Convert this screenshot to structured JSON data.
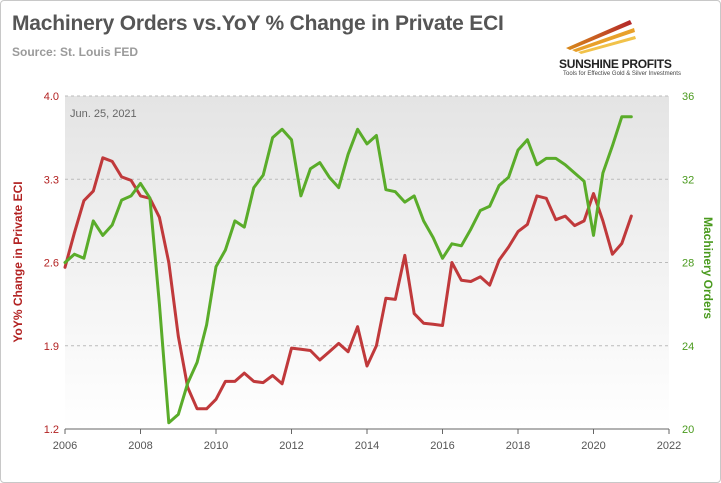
{
  "header": {
    "title": "Machinery Orders vs.YoY % Change in Private ECI",
    "source": "Source: St. Louis FED"
  },
  "logo": {
    "brand": "SUNSHINE PROFITS",
    "tagline": "Tools for Effective Gold & Silver Investments"
  },
  "colors": {
    "eci": "#c0393b",
    "orders": "#5aac2a",
    "left_axis": "#b22222",
    "right_axis": "#4a9a1e"
  },
  "chart_data": {
    "type": "line",
    "annotation": "Jun. 25, 2021",
    "xlabel": "",
    "x_ticks": [
      "2006",
      "2008",
      "2010",
      "2012",
      "2014",
      "2016",
      "2018",
      "2020",
      "2022"
    ],
    "xlim": [
      2006,
      2022
    ],
    "left_axis": {
      "label": "YoY% Change in Private ECI",
      "ticks": [
        "1.2",
        "1.9",
        "2.6",
        "3.3",
        "4.0"
      ],
      "ylim": [
        1.2,
        4.0
      ]
    },
    "right_axis": {
      "label": "Machinery Orders",
      "ticks": [
        "20",
        "24",
        "28",
        "32",
        "36"
      ],
      "ylim": [
        20,
        36
      ]
    },
    "series": [
      {
        "name": "YoY% Change in Private ECI",
        "axis": "left",
        "x": [
          2006.0,
          2006.25,
          2006.5,
          2006.75,
          2007.0,
          2007.25,
          2007.5,
          2007.75,
          2008.0,
          2008.25,
          2008.5,
          2008.75,
          2009.0,
          2009.25,
          2009.5,
          2009.75,
          2010.0,
          2010.25,
          2010.5,
          2010.75,
          2011.0,
          2011.25,
          2011.5,
          2011.75,
          2012.0,
          2012.25,
          2012.5,
          2012.75,
          2013.0,
          2013.25,
          2013.5,
          2013.75,
          2014.0,
          2014.25,
          2014.5,
          2014.75,
          2015.0,
          2015.25,
          2015.5,
          2015.75,
          2016.0,
          2016.25,
          2016.5,
          2016.75,
          2017.0,
          2017.25,
          2017.5,
          2017.75,
          2018.0,
          2018.25,
          2018.5,
          2018.75,
          2019.0,
          2019.25,
          2019.5,
          2019.75,
          2020.0,
          2020.25,
          2020.5,
          2020.75,
          2021.0
        ],
        "values": [
          2.56,
          2.85,
          3.12,
          3.2,
          3.48,
          3.45,
          3.32,
          3.29,
          3.16,
          3.14,
          2.98,
          2.6,
          1.98,
          1.55,
          1.37,
          1.37,
          1.45,
          1.6,
          1.6,
          1.67,
          1.6,
          1.59,
          1.65,
          1.58,
          1.88,
          1.87,
          1.86,
          1.78,
          1.85,
          1.92,
          1.85,
          2.06,
          1.73,
          1.9,
          2.3,
          2.29,
          2.66,
          2.17,
          2.09,
          2.08,
          2.07,
          2.6,
          2.45,
          2.44,
          2.48,
          2.41,
          2.62,
          2.73,
          2.86,
          2.92,
          3.16,
          3.14,
          2.96,
          2.99,
          2.91,
          2.95,
          3.18,
          2.95,
          2.67,
          2.76,
          2.99
        ]
      },
      {
        "name": "Machinery Orders",
        "axis": "right",
        "x": [
          2006.0,
          2006.25,
          2006.5,
          2006.75,
          2007.0,
          2007.25,
          2007.5,
          2007.75,
          2008.0,
          2008.25,
          2008.5,
          2008.75,
          2009.0,
          2009.25,
          2009.5,
          2009.75,
          2010.0,
          2010.25,
          2010.5,
          2010.75,
          2011.0,
          2011.25,
          2011.5,
          2011.75,
          2012.0,
          2012.25,
          2012.5,
          2012.75,
          2013.0,
          2013.25,
          2013.5,
          2013.75,
          2014.0,
          2014.25,
          2014.5,
          2014.75,
          2015.0,
          2015.25,
          2015.5,
          2015.75,
          2016.0,
          2016.25,
          2016.5,
          2016.75,
          2017.0,
          2017.25,
          2017.5,
          2017.75,
          2018.0,
          2018.25,
          2018.5,
          2018.75,
          2019.0,
          2019.25,
          2019.5,
          2019.75,
          2020.0,
          2020.25,
          2020.5,
          2020.75,
          2021.0
        ],
        "values": [
          28.0,
          28.4,
          28.2,
          30.0,
          29.3,
          29.8,
          31.0,
          31.2,
          31.8,
          31.1,
          26.0,
          20.3,
          20.7,
          22.2,
          23.2,
          25.0,
          27.8,
          28.6,
          30.0,
          29.7,
          31.6,
          32.2,
          34.0,
          34.4,
          33.9,
          31.2,
          32.5,
          32.8,
          32.1,
          31.6,
          33.2,
          34.4,
          33.7,
          34.1,
          31.5,
          31.4,
          30.9,
          31.2,
          30.0,
          29.2,
          28.2,
          28.9,
          28.8,
          29.6,
          30.5,
          30.7,
          31.7,
          32.1,
          33.4,
          33.9,
          32.7,
          33.0,
          33.0,
          32.7,
          32.3,
          31.9,
          29.3,
          32.3,
          33.6,
          35.0,
          35.0
        ]
      }
    ]
  }
}
